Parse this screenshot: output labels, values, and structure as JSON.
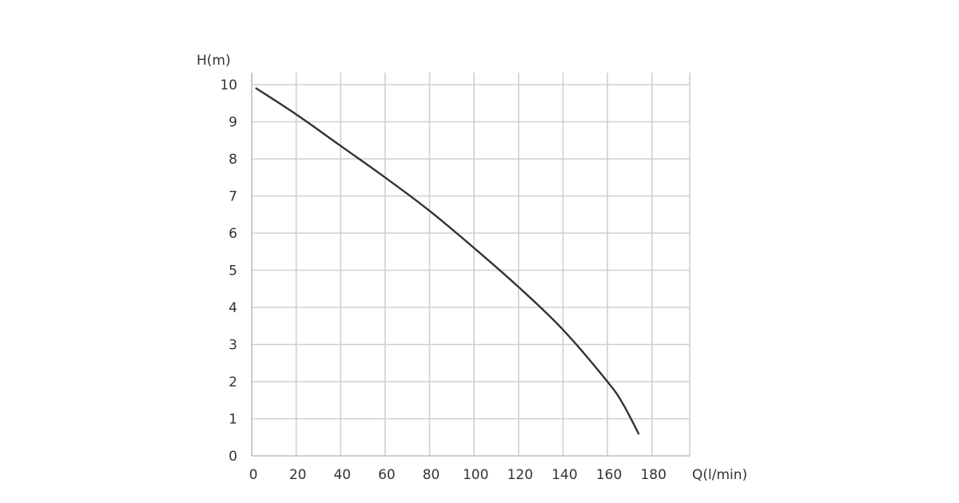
{
  "chart_data": {
    "type": "line",
    "title": "",
    "xlabel": "Q(l/min)",
    "ylabel": "H(m)",
    "xlim": [
      0,
      197
    ],
    "ylim": [
      0,
      10
    ],
    "grid": true,
    "legend": "none",
    "x_ticks": [
      0,
      20,
      40,
      60,
      80,
      100,
      120,
      140,
      160,
      180
    ],
    "y_ticks": [
      0,
      1,
      2,
      3,
      4,
      5,
      6,
      7,
      8,
      9,
      10
    ],
    "series": [
      {
        "color": "#333333",
        "x": [
          2,
          20,
          40,
          60,
          80,
          100,
          120,
          140,
          160,
          167,
          174
        ],
        "y": [
          9.9,
          9.2,
          8.35,
          7.5,
          6.6,
          5.6,
          4.55,
          3.4,
          2.0,
          1.4,
          0.6
        ]
      }
    ]
  }
}
